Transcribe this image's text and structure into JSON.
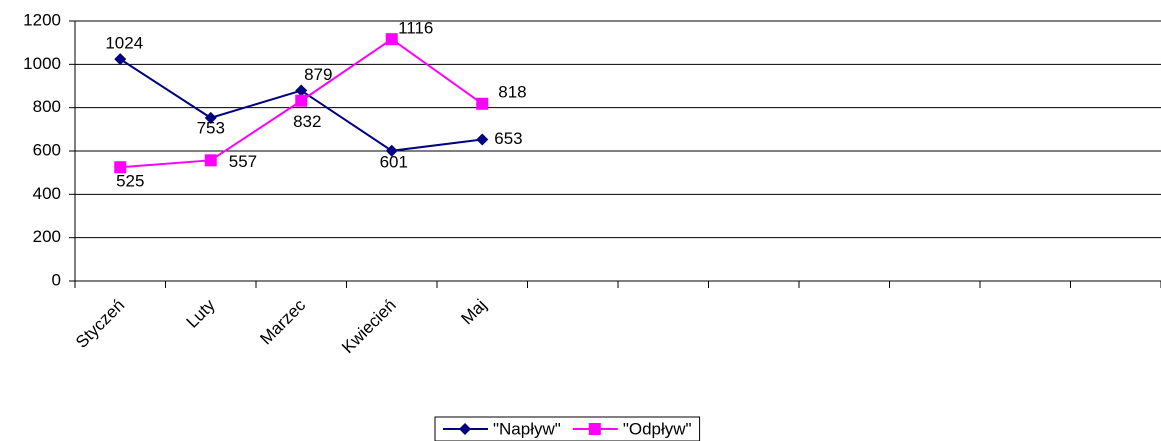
{
  "chart_data": {
    "type": "line",
    "categories": [
      "Styczeń",
      "Luty",
      "Marzec",
      "Kwiecień",
      "Maj",
      null,
      null,
      null,
      null,
      null,
      null,
      null
    ],
    "series": [
      {
        "name": "\"Napływ\"",
        "color": "#000080",
        "marker": "diamond",
        "values": [
          1024,
          753,
          879,
          601,
          653,
          null,
          null,
          null,
          null,
          null,
          null,
          null
        ]
      },
      {
        "name": "\"Odpływ\"",
        "color": "#ff00ff",
        "marker": "square",
        "values": [
          525,
          557,
          832,
          1116,
          818,
          null,
          null,
          null,
          null,
          null,
          null,
          null
        ]
      }
    ],
    "ylim": [
      0,
      1200
    ],
    "yticks": [
      0,
      200,
      400,
      600,
      800,
      1000,
      1200
    ],
    "grid": true,
    "legend": "bottom"
  }
}
